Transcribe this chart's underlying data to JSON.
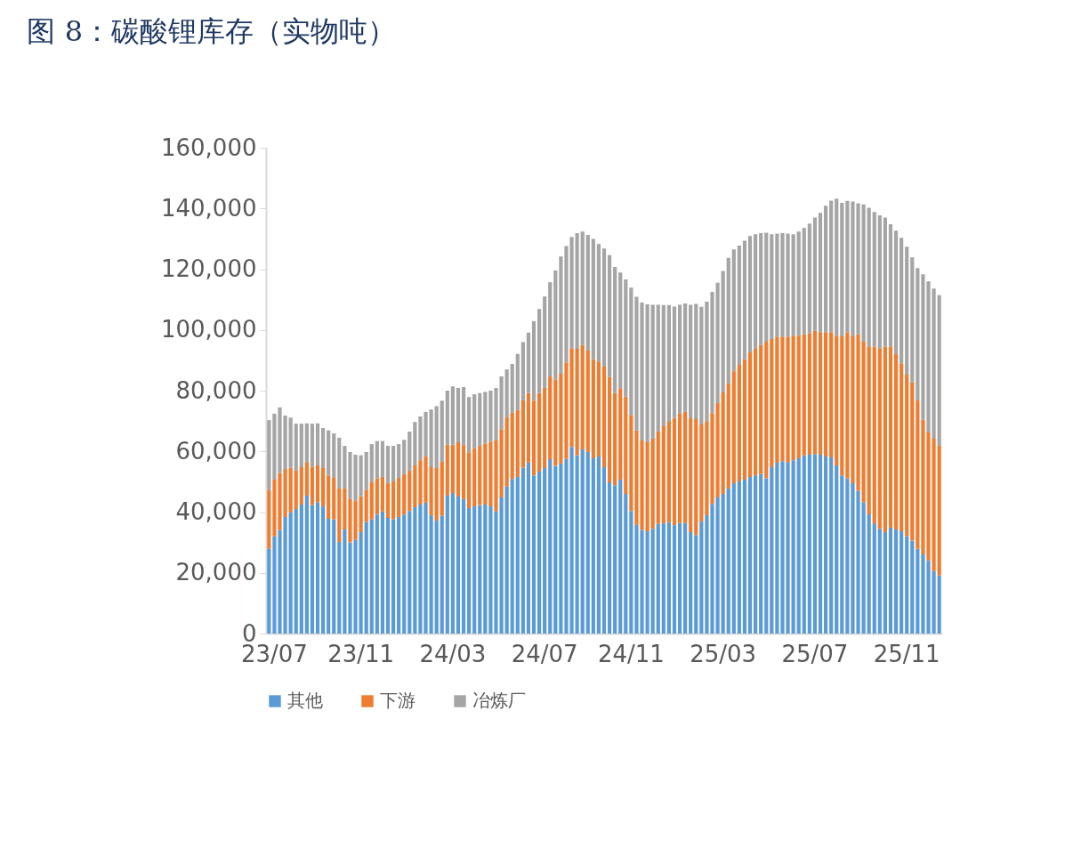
{
  "chart_data": {
    "type": "bar",
    "stacked": true,
    "title": "图 8：碳酸锂库存（实物吨）",
    "categories": [
      null,
      "23/07",
      null,
      null,
      null,
      null,
      null,
      null,
      null,
      null,
      null,
      null,
      null,
      null,
      null,
      null,
      null,
      "23/11",
      null,
      null,
      null,
      null,
      null,
      null,
      null,
      null,
      null,
      null,
      null,
      null,
      null,
      null,
      null,
      null,
      "24/03",
      null,
      null,
      null,
      null,
      null,
      null,
      null,
      null,
      null,
      null,
      null,
      null,
      null,
      null,
      null,
      null,
      "24/07",
      null,
      null,
      null,
      null,
      null,
      null,
      null,
      null,
      null,
      null,
      null,
      null,
      null,
      null,
      null,
      "24/11",
      null,
      null,
      null,
      null,
      null,
      null,
      null,
      null,
      null,
      null,
      null,
      null,
      null,
      null,
      null,
      null,
      "25/03",
      null,
      null,
      null,
      null,
      null,
      null,
      null,
      null,
      null,
      null,
      null,
      null,
      null,
      null,
      null,
      null,
      "25/07",
      null,
      null,
      null,
      null,
      null,
      null,
      null,
      null,
      null,
      null,
      null,
      null,
      null,
      null,
      null,
      null,
      "25/11",
      null,
      null,
      null,
      null,
      null,
      null
    ],
    "series": [
      {
        "name": "其他",
        "color": "#5b9bd5",
        "values": [
          27900,
          32000,
          34100,
          38400,
          39900,
          41000,
          42500,
          45400,
          42300,
          43300,
          41900,
          37800,
          37600,
          30200,
          34300,
          30000,
          30800,
          33400,
          36700,
          37600,
          39200,
          40200,
          38100,
          37600,
          38400,
          39200,
          40400,
          41600,
          42500,
          43100,
          39000,
          37200,
          38800,
          45400,
          46300,
          45100,
          44300,
          41300,
          41900,
          42300,
          42500,
          41900,
          40200,
          44800,
          48400,
          50900,
          51600,
          54600,
          56300,
          52100,
          53300,
          54500,
          57400,
          55200,
          56000,
          57500,
          61500,
          58700,
          60700,
          59800,
          57700,
          58300,
          54800,
          49800,
          48900,
          50700,
          46000,
          40400,
          35800,
          34100,
          33700,
          34500,
          36100,
          36300,
          36700,
          35700,
          36400,
          36400,
          33400,
          32400,
          36900,
          39000,
          42700,
          44800,
          46000,
          47800,
          49500,
          50100,
          50700,
          51600,
          52100,
          52500,
          51100,
          54800,
          56300,
          56800,
          56300,
          57100,
          57700,
          58700,
          58900,
          59100,
          58900,
          58300,
          58000,
          55400,
          52100,
          51100,
          49500,
          47000,
          43300,
          39300,
          36300,
          34500,
          33400,
          34900,
          34300,
          33700,
          32000,
          30600,
          27900,
          26100,
          24100,
          20600,
          19100
        ]
      },
      {
        "name": "下游",
        "color": "#ed7d31",
        "values": [
          19300,
          18700,
          18700,
          15800,
          14700,
          12600,
          12300,
          11100,
          12700,
          12100,
          12600,
          14300,
          13700,
          17600,
          13500,
          14300,
          12900,
          11800,
          10500,
          12200,
          11900,
          11400,
          11400,
          12500,
          12900,
          13300,
          13200,
          13800,
          14600,
          15200,
          15800,
          17300,
          17800,
          16800,
          15900,
          17900,
          17800,
          18400,
          19100,
          19500,
          20100,
          21300,
          23400,
          22500,
          22800,
          21800,
          22000,
          22200,
          22900,
          24600,
          25900,
          26400,
          27300,
          28500,
          29600,
          31800,
          32500,
          35100,
          34300,
          33400,
          32600,
          31300,
          33100,
          34700,
          30300,
          30100,
          32000,
          31600,
          31100,
          29500,
          29300,
          29700,
          30400,
          32000,
          33300,
          35300,
          36000,
          36600,
          37500,
          38200,
          32000,
          31000,
          29900,
          31100,
          33400,
          34500,
          36900,
          38400,
          39600,
          41000,
          41700,
          42500,
          45000,
          42200,
          41500,
          41000,
          41500,
          41000,
          40400,
          39800,
          40000,
          40600,
          40400,
          41000,
          41300,
          42700,
          45800,
          48200,
          48400,
          51500,
          52800,
          55300,
          58200,
          59300,
          61000,
          59700,
          57700,
          55300,
          53300,
          52100,
          48900,
          44300,
          42100,
          43600,
          42700
        ]
      },
      {
        "name": "冶炼厂",
        "color": "#a5a5a5",
        "values": [
          23100,
          21700,
          21700,
          17600,
          16500,
          15500,
          14300,
          12700,
          14100,
          13800,
          13200,
          14800,
          14600,
          16700,
          14000,
          15500,
          15200,
          13500,
          12600,
          12600,
          12300,
          11800,
          12300,
          11700,
          11100,
          11300,
          12900,
          14300,
          14400,
          14700,
          19000,
          20400,
          20100,
          17800,
          19200,
          17900,
          19100,
          18200,
          17800,
          17400,
          17000,
          16800,
          17300,
          17400,
          15800,
          16100,
          18500,
          19200,
          19900,
          26200,
          27700,
          30100,
          31000,
          35900,
          38600,
          38300,
          36600,
          38100,
          37400,
          38100,
          39700,
          38700,
          38900,
          40100,
          41500,
          38100,
          38600,
          41900,
          44000,
          45400,
          45400,
          44100,
          41800,
          39900,
          38200,
          36700,
          35900,
          35700,
          37400,
          38000,
          38700,
          39300,
          39900,
          39600,
          40000,
          41400,
          40100,
          39300,
          39100,
          38300,
          37700,
          36900,
          35900,
          34500,
          33900,
          34100,
          33900,
          33400,
          34300,
          35100,
          36100,
          37300,
          39200,
          41600,
          43300,
          45100,
          43900,
          43200,
          44400,
          43200,
          45200,
          45600,
          44300,
          43900,
          42600,
          40200,
          40700,
          41300,
          42100,
          41200,
          43600,
          47900,
          49800,
          49400,
          49600
        ]
      }
    ],
    "ylim": [
      0,
      160000
    ],
    "yticks": [
      {
        "value": 0,
        "label": "0"
      },
      {
        "value": 20000,
        "label": "20,000"
      },
      {
        "value": 40000,
        "label": "40,000"
      },
      {
        "value": 60000,
        "label": "60,000"
      },
      {
        "value": 80000,
        "label": "80,000"
      },
      {
        "value": 100000,
        "label": "100,000"
      },
      {
        "value": 120000,
        "label": "120,000"
      },
      {
        "value": 140000,
        "label": "140,000"
      },
      {
        "value": 160000,
        "label": "160,000"
      }
    ],
    "grid": false,
    "legend": "bottom"
  }
}
